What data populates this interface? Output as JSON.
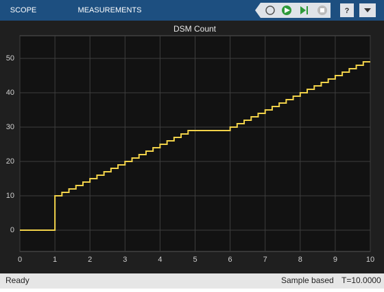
{
  "toolbar": {
    "tabs": [
      "SCOPE",
      "MEASUREMENTS"
    ]
  },
  "status": {
    "left": "Ready",
    "mode": "Sample based",
    "time": "T=10.0000"
  },
  "chart_data": {
    "type": "line",
    "title": "DSM Count",
    "step": true,
    "grid": true,
    "series": [
      {
        "name": "DSM Count",
        "color": "#f2d34a",
        "x": [
          0,
          1,
          1.2,
          1.4,
          1.6,
          1.8,
          2,
          2.2,
          2.4,
          2.6,
          2.8,
          3,
          3.2,
          3.4,
          3.6,
          3.8,
          4,
          4.2,
          4.4,
          4.6,
          4.8,
          6,
          6.2,
          6.4,
          6.6,
          6.8,
          7,
          7.2,
          7.4,
          7.6,
          7.8,
          8,
          8.2,
          8.4,
          8.6,
          8.8,
          9,
          9.2,
          9.4,
          9.6,
          9.8,
          10
        ],
        "values": [
          0,
          10,
          11,
          12,
          13,
          14,
          15,
          16,
          17,
          18,
          19,
          20,
          21,
          22,
          23,
          24,
          25,
          26,
          27,
          28,
          29,
          30,
          31,
          32,
          33,
          34,
          35,
          36,
          37,
          38,
          39,
          40,
          41,
          42,
          43,
          44,
          45,
          46,
          47,
          48,
          49,
          49
        ]
      }
    ],
    "xlim": [
      0,
      10
    ],
    "xticks": [
      0,
      1,
      2,
      3,
      4,
      5,
      6,
      7,
      8,
      9,
      10
    ],
    "ylim": [
      -6.2,
      56.6
    ],
    "yticks": [
      0,
      10,
      20,
      30,
      40,
      50
    ]
  }
}
